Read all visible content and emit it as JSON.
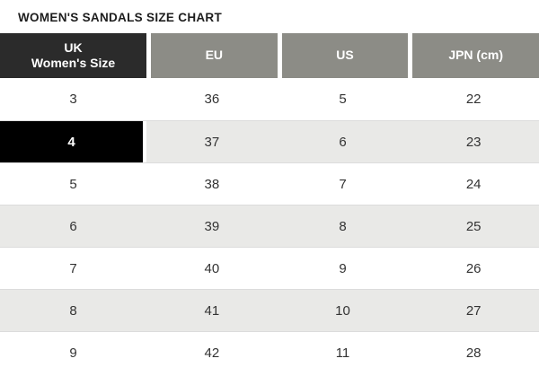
{
  "title": "WOMEN'S SANDALS SIZE CHART",
  "table": {
    "headers": [
      "UK\nWomen's Size",
      "EU",
      "US",
      "JPN (cm)"
    ],
    "rows": [
      [
        "3",
        "36",
        "5",
        "22"
      ],
      [
        "4",
        "37",
        "6",
        "23"
      ],
      [
        "5",
        "38",
        "7",
        "24"
      ],
      [
        "6",
        "39",
        "8",
        "25"
      ],
      [
        "7",
        "40",
        "9",
        "26"
      ],
      [
        "8",
        "41",
        "10",
        "27"
      ],
      [
        "9",
        "42",
        "11",
        "28"
      ]
    ],
    "selected_uk_size": "4"
  },
  "colors": {
    "header-dark": "#2b2b2b",
    "header-gray": "#8c8c86",
    "row-stripe": "#e9e9e7",
    "selected-bg": "#000000",
    "header-text": "#ffffff",
    "body-text": "#333333",
    "title-text": "#1d1d1d",
    "row-border": "#dcdcdc"
  }
}
